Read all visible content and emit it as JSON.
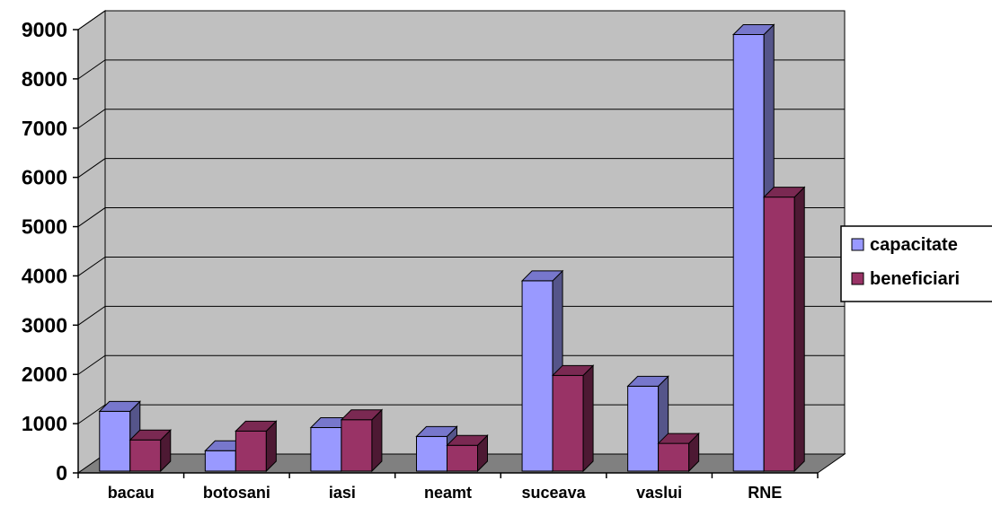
{
  "chart_data": {
    "type": "bar",
    "title": "",
    "xlabel": "",
    "ylabel": "",
    "categories": [
      "bacau",
      "botosani",
      "iasi",
      "neamt",
      "suceava",
      "vaslui",
      "RNE"
    ],
    "series": [
      {
        "name": "capacitate",
        "values": [
          1250,
          450,
          920,
          740,
          3900,
          1760,
          8900
        ],
        "color": "#9999ff",
        "side": "#55558a",
        "top": "#7777cc"
      },
      {
        "name": "beneficiari",
        "values": [
          670,
          850,
          1080,
          560,
          1980,
          600,
          5600
        ],
        "color": "#993366",
        "side": "#4d1933",
        "top": "#7a2952"
      }
    ],
    "ylim": [
      0,
      9000
    ],
    "yticks": [
      "0",
      "1000",
      "2000",
      "3000",
      "4000",
      "5000",
      "6000",
      "7000",
      "8000",
      "9000"
    ],
    "grid": true,
    "legend": "right",
    "style": "3d-clustered-column",
    "wall_color": "#c0c0c0",
    "floor_color": "#808080"
  }
}
